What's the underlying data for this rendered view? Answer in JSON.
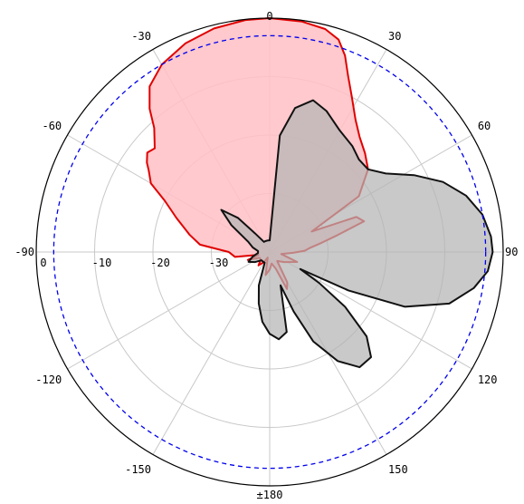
{
  "chart_data": {
    "type": "polar-area",
    "angle_ticks": [
      {
        "deg": 0,
        "label": "0"
      },
      {
        "deg": 30,
        "label": "30"
      },
      {
        "deg": 60,
        "label": "60"
      },
      {
        "deg": 90,
        "label": "90"
      },
      {
        "deg": 120,
        "label": "120"
      },
      {
        "deg": 150,
        "label": "150"
      },
      {
        "deg": 180,
        "label": "±180"
      },
      {
        "deg": -150,
        "label": "-150"
      },
      {
        "deg": -120,
        "label": "-120"
      },
      {
        "deg": -90,
        "label": "-90"
      },
      {
        "deg": -60,
        "label": "-60"
      },
      {
        "deg": -30,
        "label": "-30"
      }
    ],
    "radial_ticks": [
      {
        "value": 0,
        "label": "0"
      },
      {
        "value": -10,
        "label": "-10"
      },
      {
        "value": -20,
        "label": "-20"
      },
      {
        "value": -30,
        "label": "-30"
      }
    ],
    "rlim": [
      -40,
      0
    ],
    "reference_level": -3,
    "colors": {
      "ref": "#0000ee",
      "red_line": "#e00000",
      "red_fill": "#ffc0c4",
      "black_line": "#111111",
      "black_fill": "#b4b4b4"
    },
    "series": [
      {
        "color": "red",
        "points": [
          [
            0,
            0
          ],
          [
            8,
            -0.2
          ],
          [
            14,
            -0.7
          ],
          [
            18,
            -1.8
          ],
          [
            21,
            -4
          ],
          [
            24,
            -7
          ],
          [
            28,
            -10
          ],
          [
            33,
            -13
          ],
          [
            38,
            -15
          ],
          [
            44,
            -16.5
          ],
          [
            50,
            -18
          ],
          [
            58,
            -22
          ],
          [
            64,
            -32
          ],
          [
            68,
            -24
          ],
          [
            72,
            -23
          ],
          [
            76,
            -28
          ],
          [
            80,
            -31
          ],
          [
            84,
            -33
          ],
          [
            88,
            -34
          ],
          [
            92,
            -36
          ],
          [
            100,
            -38
          ],
          [
            110,
            -35
          ],
          [
            125,
            -37
          ],
          [
            140,
            -38
          ],
          [
            150,
            -34
          ],
          [
            155,
            -33
          ],
          [
            160,
            -37
          ],
          [
            170,
            -38
          ],
          [
            180,
            -37
          ],
          [
            190,
            -36
          ],
          [
            200,
            -39
          ],
          [
            210,
            -38
          ],
          [
            220,
            -37
          ],
          [
            230,
            -38
          ],
          [
            240,
            -38
          ],
          [
            250,
            -36
          ],
          [
            256,
            -38
          ],
          [
            262,
            -34
          ],
          [
            270,
            -33
          ],
          [
            276,
            -28
          ],
          [
            282,
            -26
          ],
          [
            290,
            -23
          ],
          [
            296,
            -20
          ],
          [
            300,
            -16.5
          ],
          [
            304,
            -15
          ],
          [
            306,
            -14
          ],
          [
            309,
            -13
          ],
          [
            312,
            -13.5
          ],
          [
            317,
            -11
          ],
          [
            320,
            -8
          ],
          [
            324,
            -5
          ],
          [
            330,
            -3
          ],
          [
            338,
            -1.5
          ],
          [
            346,
            -0.6
          ],
          [
            354,
            -0.1
          ],
          [
            360,
            0
          ]
        ]
      },
      {
        "color": "black",
        "points": [
          [
            0,
            -38
          ],
          [
            5,
            -20
          ],
          [
            10,
            -15
          ],
          [
            16,
            -13
          ],
          [
            22,
            -14
          ],
          [
            30,
            -16
          ],
          [
            38,
            -17
          ],
          [
            44,
            -18
          ],
          [
            50,
            -18
          ],
          [
            56,
            -16
          ],
          [
            62,
            -12
          ],
          [
            68,
            -8
          ],
          [
            74,
            -5
          ],
          [
            80,
            -3
          ],
          [
            86,
            -2
          ],
          [
            90,
            -1.8
          ],
          [
            95,
            -2.5
          ],
          [
            100,
            -4.5
          ],
          [
            106,
            -8
          ],
          [
            112,
            -15
          ],
          [
            116,
            -25
          ],
          [
            119,
            -34
          ],
          [
            122,
            -30
          ],
          [
            126,
            -24
          ],
          [
            131,
            -18
          ],
          [
            136,
            -15
          ],
          [
            142,
            -15
          ],
          [
            148,
            -18
          ],
          [
            154,
            -23
          ],
          [
            158,
            -29
          ],
          [
            162,
            -34
          ],
          [
            168,
            -26
          ],
          [
            174,
            -25
          ],
          [
            180,
            -26
          ],
          [
            186,
            -28
          ],
          [
            192,
            -31
          ],
          [
            198,
            -34
          ],
          [
            205,
            -38
          ],
          [
            215,
            -38
          ],
          [
            225,
            -38
          ],
          [
            235,
            -37
          ],
          [
            245,
            -36
          ],
          [
            255,
            -37
          ],
          [
            265,
            -38
          ],
          [
            275,
            -38
          ],
          [
            285,
            -37
          ],
          [
            295,
            -36
          ],
          [
            305,
            -32
          ],
          [
            311,
            -29
          ],
          [
            317,
            -32
          ],
          [
            322,
            -36
          ],
          [
            330,
            -38
          ],
          [
            340,
            -38
          ],
          [
            350,
            -38
          ],
          [
            360,
            -38
          ]
        ]
      }
    ]
  }
}
